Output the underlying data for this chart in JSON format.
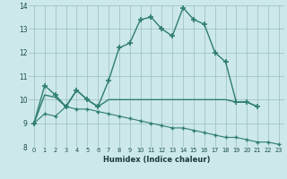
{
  "xlabel": "Humidex (Indice chaleur)",
  "x": [
    0,
    1,
    2,
    3,
    4,
    5,
    6,
    7,
    8,
    9,
    10,
    11,
    12,
    13,
    14,
    15,
    16,
    17,
    18,
    19,
    20,
    21,
    22,
    23
  ],
  "line1": [
    9.0,
    10.6,
    10.2,
    9.7,
    10.4,
    10.0,
    9.7,
    10.8,
    12.2,
    12.4,
    13.4,
    13.5,
    13.0,
    12.7,
    13.9,
    13.4,
    13.2,
    12.0,
    11.6,
    9.9,
    9.9,
    9.7,
    null,
    null
  ],
  "line2": [
    9.0,
    10.2,
    10.1,
    9.7,
    10.4,
    10.0,
    9.7,
    10.0,
    10.0,
    10.0,
    10.0,
    10.0,
    10.0,
    10.0,
    10.0,
    10.0,
    10.0,
    10.0,
    10.0,
    9.9,
    9.9,
    9.7,
    null,
    null
  ],
  "line3": [
    9.0,
    9.4,
    9.3,
    9.7,
    9.6,
    9.6,
    9.5,
    9.4,
    9.3,
    9.2,
    9.1,
    9.0,
    8.9,
    8.8,
    8.8,
    8.7,
    8.6,
    8.5,
    8.4,
    8.4,
    8.3,
    8.2,
    8.2,
    8.1
  ],
  "color": "#2e7d6e",
  "bg_color": "#cce8e8",
  "ylim": [
    8,
    14
  ],
  "xlim": [
    -0.5,
    23.5
  ],
  "yticks": [
    8,
    9,
    10,
    11,
    12,
    13,
    14
  ],
  "xticks": [
    0,
    1,
    2,
    3,
    4,
    5,
    6,
    7,
    8,
    9,
    10,
    11,
    12,
    13,
    14,
    15,
    16,
    17,
    18,
    19,
    20,
    21,
    22,
    23
  ]
}
